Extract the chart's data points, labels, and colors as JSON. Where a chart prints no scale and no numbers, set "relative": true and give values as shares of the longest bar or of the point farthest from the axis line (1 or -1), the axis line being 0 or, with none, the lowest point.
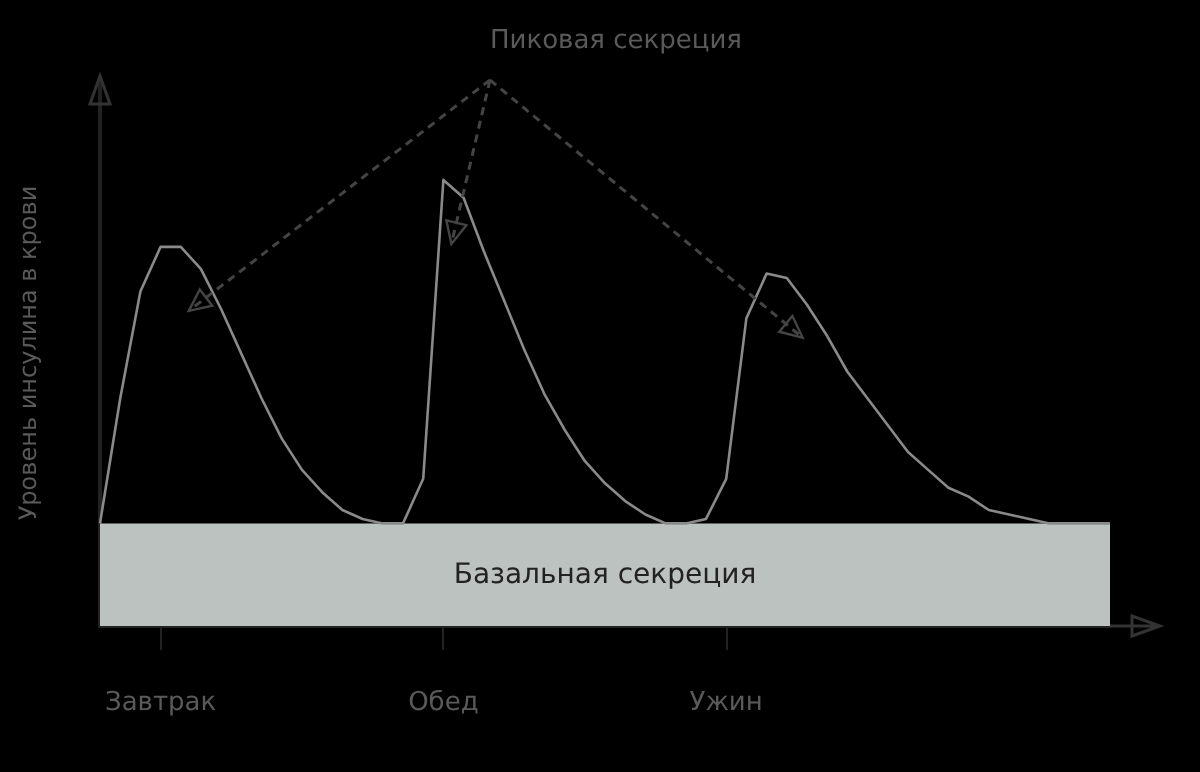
{
  "chart_data": {
    "type": "line",
    "relative": true,
    "ylabel": "Уровень инсулина в крови",
    "annotations": [
      "Пиковая секреция"
    ],
    "categories": [
      null,
      null,
      null,
      "Завтрак",
      null,
      null,
      null,
      null,
      null,
      null,
      null,
      null,
      null,
      null,
      null,
      null,
      null,
      "Обед",
      null,
      null,
      null,
      null,
      null,
      null,
      null,
      null,
      null,
      null,
      null,
      null,
      null,
      "Ужин",
      null,
      null,
      null,
      null,
      null,
      null,
      null,
      null,
      null,
      null,
      null,
      null,
      null,
      null,
      null,
      null,
      null,
      null,
      null
    ],
    "series": [
      {
        "color": "#8a8a8a",
        "values": [
          0.23,
          0.51,
          0.75,
          0.85,
          0.85,
          0.8,
          0.71,
          0.61,
          0.51,
          0.42,
          0.35,
          0.3,
          0.26,
          0.24,
          0.23,
          0.23,
          0.33,
          1,
          0.96,
          0.84,
          0.73,
          0.62,
          0.52,
          0.44,
          0.37,
          0.32,
          0.28,
          0.25,
          0.23,
          0.23,
          0.24,
          0.33,
          0.69,
          0.79,
          0.78,
          0.72,
          0.65,
          0.57,
          0.51,
          0.45,
          0.39,
          0.35,
          0.31,
          0.29,
          0.26,
          0.25,
          0.24,
          0.23,
          0.23,
          0.23,
          0.23
        ]
      }
    ],
    "bands": [
      {
        "axis": "y",
        "from": 0,
        "to": 0.23,
        "label": "Базальная секреция",
        "color": "#bcc2bf"
      }
    ]
  }
}
